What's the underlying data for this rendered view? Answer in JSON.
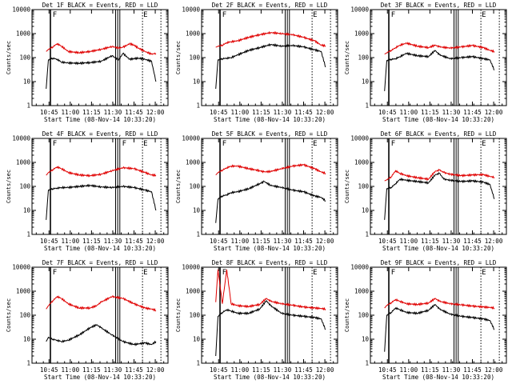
{
  "figure": {
    "ylabel": "Counts/sec",
    "xlabel": "Start Time (08-Nov-14 10:33:20)",
    "y_ticks": [
      "1",
      "10",
      "100",
      "1000",
      "10000"
    ],
    "colors": {
      "events": "#000000",
      "lld": "#e00000",
      "axes": "#000000"
    }
  },
  "chart_data": [
    {
      "type": "line",
      "title": "Det 1F BLACK = Events, RED = LLD",
      "x_ticks": [
        "10:45",
        "11:00",
        "11:15",
        "11:30",
        "11:45",
        "12:00"
      ],
      "ylim": [
        1,
        10000
      ],
      "yscale": "log",
      "x": [
        40,
        41,
        43,
        45,
        47,
        50,
        55,
        60,
        65,
        70,
        73,
        75,
        78,
        80,
        82,
        85,
        88,
        90
      ],
      "series": [
        {
          "name": "Events",
          "color": "#000000",
          "values": [
            5,
            80,
            95,
            85,
            65,
            60,
            58,
            62,
            70,
            120,
            80,
            150,
            85,
            90,
            95,
            85,
            70,
            10
          ]
        },
        {
          "name": "LLD",
          "color": "#e00000",
          "values": [
            180,
            220,
            280,
            380,
            300,
            180,
            160,
            180,
            220,
            290,
            250,
            270,
            380,
            330,
            250,
            180,
            140,
            150
          ]
        }
      ],
      "markers": {
        "shaded_vertical_lines": [
          45,
          67,
          68
        ],
        "dotted_vertical_lines": [
          73
        ],
        "letters": [
          "F",
          "E"
        ]
      }
    },
    {
      "type": "line",
      "title": "Det 2F BLACK = Events, RED = LLD",
      "x_ticks": [
        "10:45",
        "11:00",
        "11:15",
        "11:30",
        "11:45",
        "12:00"
      ],
      "ylim": [
        1,
        10000
      ],
      "yscale": "log",
      "x": [
        40,
        41,
        43,
        45,
        47,
        50,
        55,
        60,
        65,
        70,
        75,
        80,
        85,
        88,
        90
      ],
      "series": [
        {
          "name": "Events",
          "color": "#000000",
          "values": [
            5,
            80,
            90,
            95,
            100,
            130,
            200,
            260,
            350,
            300,
            320,
            280,
            210,
            180,
            40
          ]
        },
        {
          "name": "LLD",
          "color": "#e00000",
          "values": [
            270,
            300,
            330,
            420,
            460,
            500,
            700,
            900,
            1100,
            1000,
            900,
            700,
            500,
            330,
            310
          ]
        }
      ],
      "markers": {
        "shaded_vertical_lines": [
          45,
          67,
          68
        ],
        "dotted_vertical_lines": [
          73
        ],
        "letters": [
          "F",
          "E"
        ]
      }
    },
    {
      "type": "line",
      "title": "Det 3F BLACK = Events, RED = LLD",
      "x_ticks": [
        "10:45",
        "11:00",
        "11:15",
        "11:30",
        "11:45",
        "12:00"
      ],
      "ylim": [
        1,
        10000
      ],
      "yscale": "log",
      "x": [
        40,
        41,
        43,
        45,
        47,
        50,
        55,
        60,
        63,
        65,
        70,
        75,
        80,
        85,
        88,
        90
      ],
      "series": [
        {
          "name": "Events",
          "color": "#000000",
          "values": [
            4,
            75,
            85,
            90,
            110,
            150,
            120,
            110,
            200,
            130,
            90,
            100,
            110,
            90,
            80,
            30
          ]
        },
        {
          "name": "LLD",
          "color": "#e00000",
          "values": [
            140,
            160,
            200,
            260,
            330,
            400,
            300,
            260,
            330,
            280,
            250,
            280,
            320,
            260,
            200,
            180
          ]
        }
      ],
      "markers": {
        "shaded_vertical_lines": [
          45,
          67,
          68
        ],
        "dotted_vertical_lines": [
          73
        ],
        "letters": [
          "F",
          "E"
        ]
      }
    },
    {
      "type": "line",
      "title": "Det 4F BLACK = Events, RED = LLD",
      "x_ticks": [
        "10:45",
        "11:00",
        "11:15",
        "11:30",
        "11:45",
        "12:00"
      ],
      "ylim": [
        1,
        10000
      ],
      "yscale": "log",
      "x": [
        40,
        41,
        43,
        45,
        47,
        50,
        55,
        60,
        65,
        70,
        75,
        80,
        85,
        88,
        90
      ],
      "series": [
        {
          "name": "Events",
          "color": "#000000",
          "values": [
            4,
            70,
            80,
            85,
            90,
            90,
            100,
            110,
            95,
            90,
            100,
            90,
            70,
            60,
            10
          ]
        },
        {
          "name": "LLD",
          "color": "#e00000",
          "values": [
            290,
            380,
            500,
            650,
            550,
            380,
            300,
            280,
            320,
            450,
            600,
            550,
            380,
            300,
            290
          ]
        }
      ],
      "markers": {
        "shaded_vertical_lines": [
          45,
          67,
          68
        ],
        "dotted_vertical_lines": [
          73
        ],
        "letters": [
          "F",
          "F",
          "E"
        ]
      }
    },
    {
      "type": "line",
      "title": "Det 5F BLACK = Events, RED = LLD",
      "x_ticks": [
        "10:45",
        "11:00",
        "11:15",
        "11:30",
        "11:45",
        "12:00"
      ],
      "ylim": [
        1,
        10000
      ],
      "yscale": "log",
      "x": [
        40,
        41,
        43,
        45,
        47,
        50,
        55,
        60,
        62,
        65,
        70,
        75,
        80,
        85,
        88,
        90
      ],
      "series": [
        {
          "name": "Events",
          "color": "#000000",
          "values": [
            3,
            30,
            40,
            45,
            55,
            60,
            80,
            130,
            160,
            110,
            90,
            70,
            60,
            40,
            35,
            25
          ]
        },
        {
          "name": "LLD",
          "color": "#e00000",
          "values": [
            300,
            380,
            480,
            600,
            700,
            700,
            550,
            450,
            400,
            420,
            550,
            700,
            800,
            550,
            400,
            350
          ]
        }
      ],
      "markers": {
        "shaded_vertical_lines": [
          45,
          67,
          68
        ],
        "dotted_vertical_lines": [
          73
        ],
        "letters": [
          "F",
          "E"
        ]
      }
    },
    {
      "type": "line",
      "title": "Det 6F BLACK = Events, RED = LLD",
      "x_ticks": [
        "10:45",
        "11:00",
        "11:15",
        "11:30",
        "11:45",
        "12:00"
      ],
      "ylim": [
        1,
        10000
      ],
      "yscale": "log",
      "x": [
        40,
        41,
        43,
        45,
        47,
        50,
        55,
        60,
        63,
        65,
        67,
        70,
        75,
        80,
        85,
        88,
        90
      ],
      "series": [
        {
          "name": "Events",
          "color": "#000000",
          "values": [
            4,
            80,
            90,
            130,
            200,
            180,
            160,
            140,
            300,
            350,
            200,
            180,
            160,
            170,
            150,
            120,
            30
          ]
        },
        {
          "name": "LLD",
          "color": "#e00000",
          "values": [
            170,
            190,
            250,
            450,
            350,
            280,
            230,
            200,
            420,
            480,
            380,
            320,
            280,
            300,
            310,
            260,
            240
          ]
        }
      ],
      "markers": {
        "shaded_vertical_lines": [
          45,
          67,
          68
        ],
        "dotted_vertical_lines": [
          73
        ],
        "letters": [
          "F",
          "E"
        ]
      }
    },
    {
      "type": "line",
      "title": "Det 7F BLACK = Events, RED = LLD",
      "x_ticks": [
        "10:45",
        "11:00",
        "11:15",
        "11:30",
        "11:45",
        "12:00"
      ],
      "ylim": [
        1,
        10000
      ],
      "yscale": "log",
      "x": [
        40,
        41,
        43,
        45,
        47,
        50,
        55,
        60,
        63,
        65,
        70,
        75,
        80,
        85,
        88,
        90
      ],
      "series": [
        {
          "name": "Events",
          "color": "#000000",
          "values": [
            8,
            12,
            10,
            9,
            8,
            9,
            15,
            30,
            40,
            30,
            15,
            8,
            6,
            7,
            6,
            8
          ]
        },
        {
          "name": "LLD",
          "color": "#e00000",
          "values": [
            180,
            250,
            400,
            600,
            500,
            300,
            200,
            200,
            250,
            350,
            600,
            500,
            300,
            200,
            180,
            160
          ]
        }
      ],
      "markers": {
        "shaded_vertical_lines": [
          45,
          67,
          68
        ],
        "dotted_vertical_lines": [
          73
        ],
        "letters": [
          "F",
          "E"
        ]
      }
    },
    {
      "type": "line",
      "title": "Det 8F BLACK = Events, RED = LLD",
      "x_ticks": [
        "10:45",
        "11:00",
        "11:15",
        "11:30",
        "11:45",
        "12:00"
      ],
      "ylim": [
        1,
        10000
      ],
      "yscale": "log",
      "x": [
        40,
        41,
        43,
        45,
        47,
        50,
        55,
        60,
        63,
        65,
        70,
        75,
        80,
        85,
        88,
        90
      ],
      "series": [
        {
          "name": "Events",
          "color": "#000000",
          "values": [
            2,
            90,
            130,
            170,
            150,
            120,
            120,
            180,
            400,
            250,
            120,
            100,
            90,
            80,
            70,
            25
          ]
        },
        {
          "name": "LLD",
          "color": "#e00000",
          "values": [
            350,
            8000,
            300,
            8000,
            300,
            250,
            230,
            280,
            500,
            380,
            300,
            260,
            220,
            200,
            190,
            180
          ]
        }
      ],
      "markers": {
        "shaded_vertical_lines": [
          45,
          67,
          68
        ],
        "dotted_vertical_lines": [
          73
        ],
        "letters": [
          "F",
          "E"
        ]
      }
    },
    {
      "type": "line",
      "title": "Det 9F BLACK = Events, RED = LLD",
      "x_ticks": [
        "10:45",
        "11:00",
        "11:15",
        "11:30",
        "11:45",
        "12:00"
      ],
      "ylim": [
        1,
        10000
      ],
      "yscale": "log",
      "x": [
        40,
        41,
        43,
        45,
        47,
        50,
        55,
        60,
        63,
        65,
        70,
        75,
        80,
        85,
        88,
        90
      ],
      "series": [
        {
          "name": "Events",
          "color": "#000000",
          "values": [
            3,
            100,
            130,
            200,
            170,
            130,
            120,
            160,
            280,
            180,
            110,
            90,
            80,
            70,
            60,
            25
          ]
        },
        {
          "name": "LLD",
          "color": "#e00000",
          "values": [
            200,
            260,
            330,
            450,
            380,
            300,
            280,
            320,
            500,
            380,
            300,
            270,
            240,
            220,
            210,
            200
          ]
        }
      ],
      "markers": {
        "shaded_vertical_lines": [
          45,
          67,
          68
        ],
        "dotted_vertical_lines": [
          73
        ],
        "letters": [
          "F",
          "E"
        ]
      }
    }
  ]
}
